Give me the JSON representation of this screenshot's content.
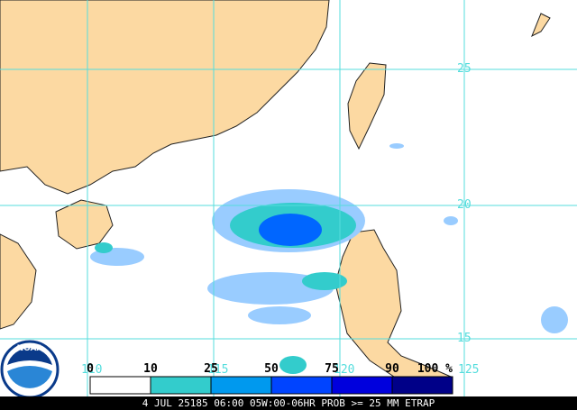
{
  "map": {
    "lat_labels": [
      "25",
      "20",
      "15"
    ],
    "lon_labels": [
      "110",
      "115",
      "120",
      "125"
    ]
  },
  "legend": {
    "labels": [
      "0",
      "10",
      "25",
      "50",
      "75",
      "90",
      "100 %"
    ],
    "colors": [
      "#ffffff",
      "#99ccff",
      "#33cccc",
      "#0099ee",
      "#0044ff",
      "#0000dd",
      "#000088"
    ]
  },
  "logo": "NOAA",
  "footer": "4 JUL 25185 06:00 05W:00-06HR PROB >= 25 MM ETRAP"
}
